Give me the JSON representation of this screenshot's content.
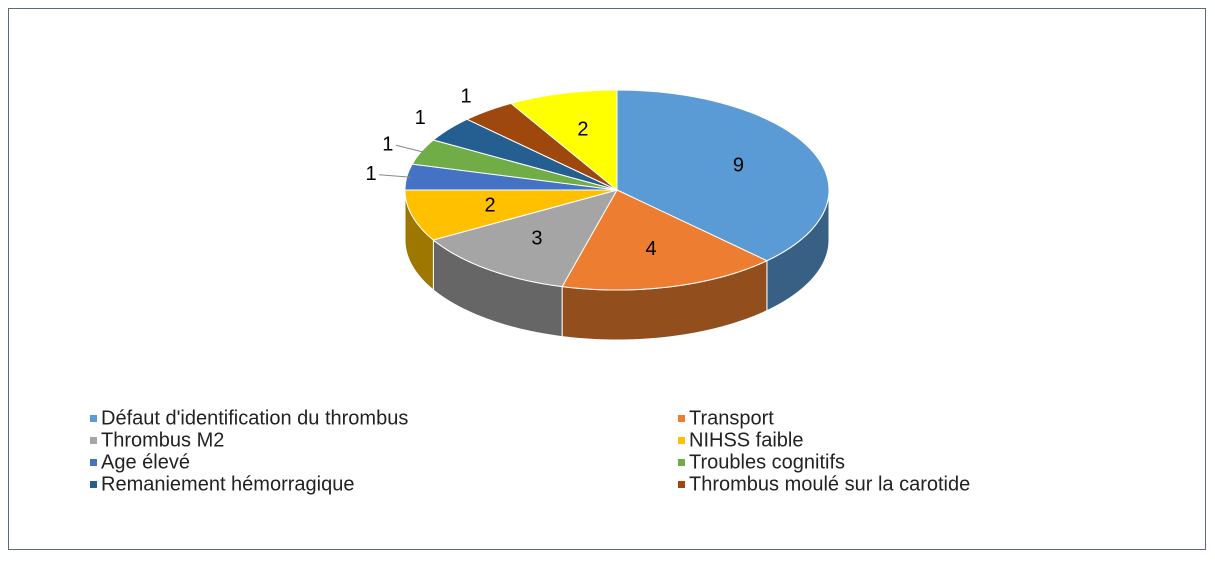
{
  "chart_data": {
    "type": "pie",
    "categories": [
      "Défaut d'identification du thrombus",
      "Transport",
      "Thrombus M2",
      "NIHSS faible",
      "Age élevé",
      "Troubles cognitifs",
      "Remaniement hémorragique",
      "Thrombus moulé sur la carotide",
      null
    ],
    "values": [
      9,
      4,
      3,
      2,
      1,
      1,
      1,
      1,
      2
    ],
    "colors": [
      "#5b9bd5",
      "#ed7d31",
      "#a5a5a5",
      "#ffc000",
      "#4472c4",
      "#70ad47",
      "#255e91",
      "#9e480e",
      "#ffff00"
    ],
    "legend": "bottom"
  }
}
